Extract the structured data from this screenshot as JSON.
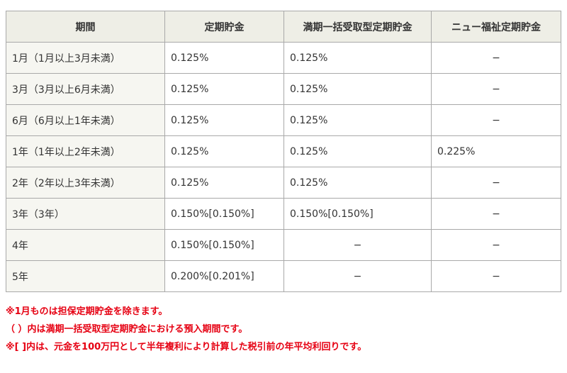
{
  "headers": [
    "期間",
    "定期貯金",
    "満期一括受取型定期貯金",
    "ニュー福祉定期貯金"
  ],
  "rows": [
    {
      "period": "1月（1月以上3月未満）",
      "teiki": "0.125%",
      "manki": "0.125%",
      "fukushi": "−"
    },
    {
      "period": "3月（3月以上6月未満）",
      "teiki": "0.125%",
      "manki": "0.125%",
      "fukushi": "−"
    },
    {
      "period": "6月（6月以上1年未満）",
      "teiki": "0.125%",
      "manki": "0.125%",
      "fukushi": "−"
    },
    {
      "period": "1年（1年以上2年未満）",
      "teiki": "0.125%",
      "manki": "0.125%",
      "fukushi": "0.225%"
    },
    {
      "period": "2年（2年以上3年未満）",
      "teiki": "0.125%",
      "manki": "0.125%",
      "fukushi": "−"
    },
    {
      "period": "3年（3年）",
      "teiki": "0.150%[0.150%]",
      "manki": "0.150%[0.150%]",
      "fukushi": "−"
    },
    {
      "period": "4年",
      "teiki": "0.150%[0.150%]",
      "manki": "−",
      "fukushi": "−"
    },
    {
      "period": "5年",
      "teiki": "0.200%[0.201%]",
      "manki": "−",
      "fukushi": "−"
    }
  ],
  "notes": [
    "※1月ものは担保定期貯金を除きます。",
    "（ ）内は満期一括受取型定期貯金における預入期間です。",
    "※[ ]内は、元金を100万円として半年複利により計算した税引前の年平均利回りです。"
  ]
}
